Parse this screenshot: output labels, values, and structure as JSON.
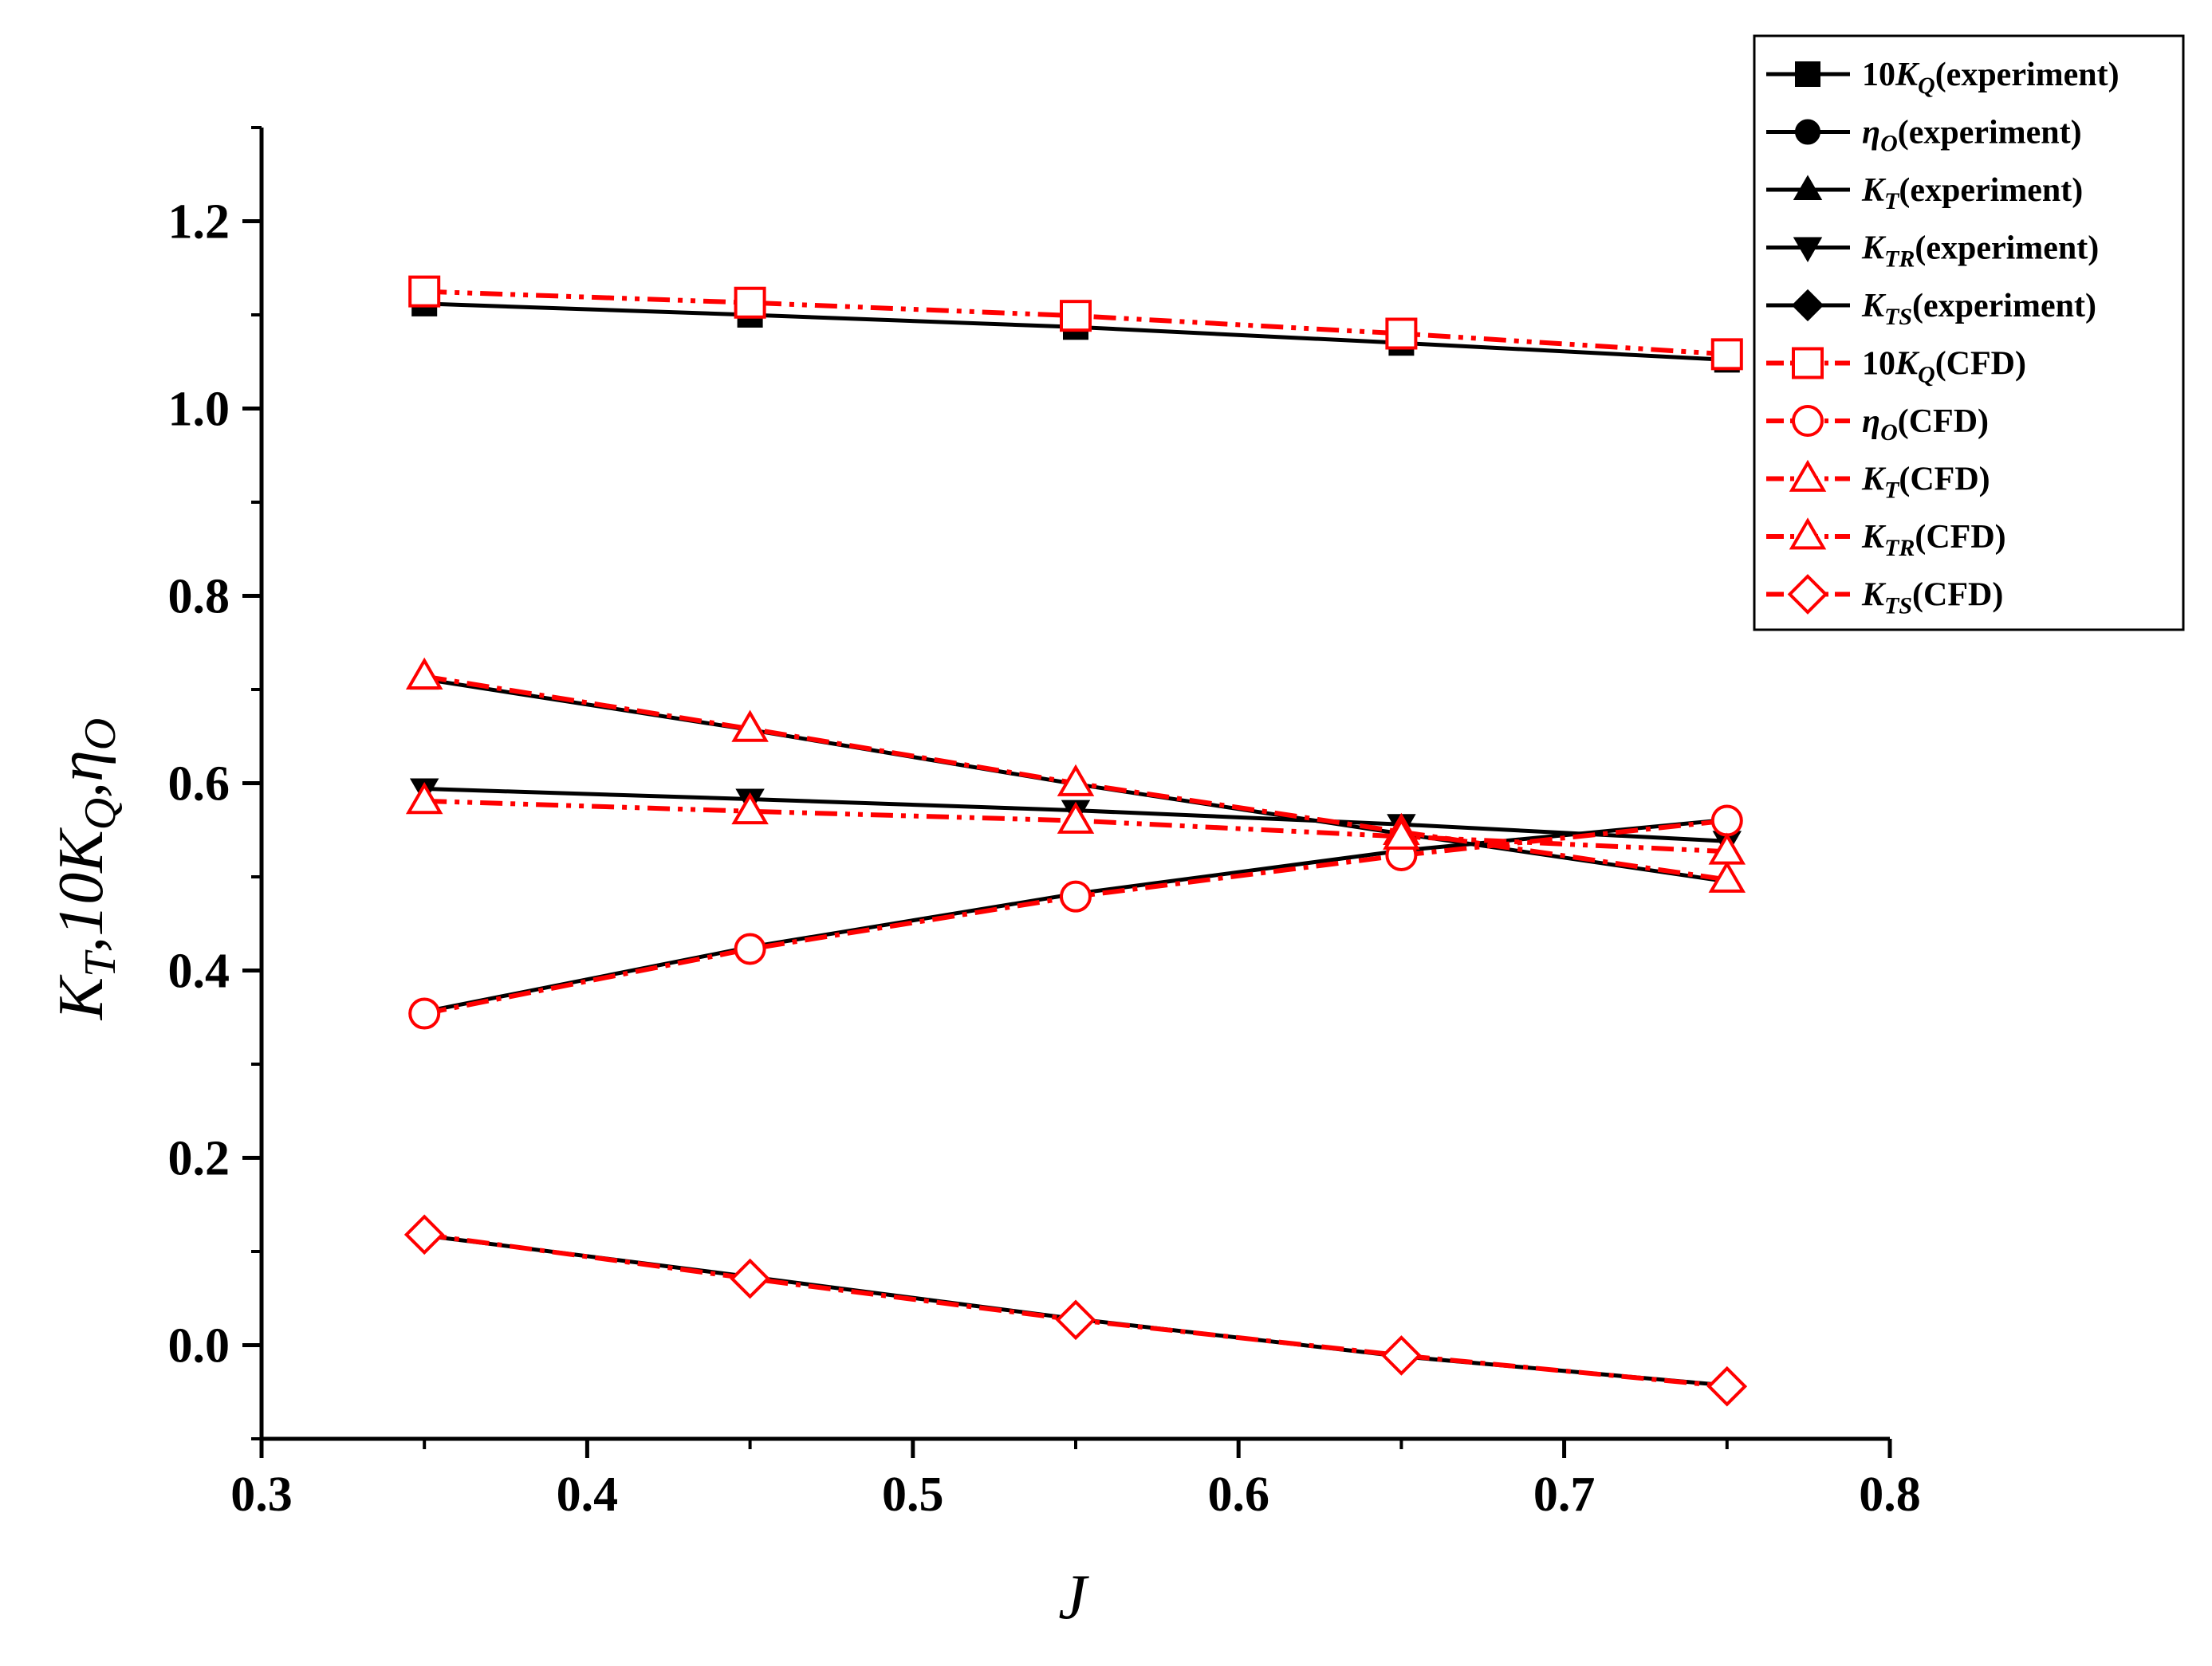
{
  "chart_data": {
    "type": "line",
    "xlabel": "J",
    "ylabel": {
      "parts": [
        {
          "t": "K",
          "sub": "T"
        },
        {
          "t": ",10K",
          "sub": "Q"
        },
        {
          "t": ",η",
          "sub": "O"
        }
      ]
    },
    "xlim": [
      0.3,
      0.8
    ],
    "ylim": [
      -0.1,
      1.3
    ],
    "xticks": [
      "0.3",
      "0.4",
      "0.5",
      "0.6",
      "0.7",
      "0.8"
    ],
    "yticks": [
      "0.0",
      "0.2",
      "0.4",
      "0.6",
      "0.8",
      "1.0",
      "1.2"
    ],
    "x": [
      0.35,
      0.45,
      0.55,
      0.65,
      0.75
    ],
    "grid": false,
    "legend_position": "top-right",
    "series": [
      {
        "key": "kq_exp",
        "legend": {
          "pre": "10",
          "sym": "K",
          "sub": "Q",
          "post": "(experiment)"
        },
        "color": "#000000",
        "marker": "square",
        "filled": true,
        "dash": "solid",
        "values": [
          1.112,
          1.1,
          1.087,
          1.07,
          1.052
        ]
      },
      {
        "key": "eta_exp",
        "legend": {
          "pre": "",
          "sym": "η",
          "sub": "O",
          "post": "(experiment)"
        },
        "color": "#000000",
        "marker": "circle",
        "filled": true,
        "dash": "solid",
        "values": [
          0.356,
          0.425,
          0.482,
          0.528,
          0.561
        ]
      },
      {
        "key": "kt_exp",
        "legend": {
          "pre": "",
          "sym": "K",
          "sub": "T",
          "post": "(experiment)"
        },
        "color": "#000000",
        "marker": "triangle-up",
        "filled": true,
        "dash": "solid",
        "values": [
          0.711,
          0.657,
          0.599,
          0.546,
          0.495
        ]
      },
      {
        "key": "ktr_exp",
        "legend": {
          "pre": "",
          "sym": "K",
          "sub": "TR",
          "post": "(experiment)"
        },
        "color": "#000000",
        "marker": "triangle-down",
        "filled": true,
        "dash": "solid",
        "values": [
          0.594,
          0.583,
          0.571,
          0.556,
          0.538
        ]
      },
      {
        "key": "kts_exp",
        "legend": {
          "pre": "",
          "sym": "K",
          "sub": "TS",
          "post": "(experiment)"
        },
        "color": "#000000",
        "marker": "diamond",
        "filled": true,
        "dash": "solid",
        "values": [
          0.117,
          0.073,
          0.028,
          -0.012,
          -0.043
        ]
      },
      {
        "key": "kq_cfd",
        "legend": {
          "pre": "10",
          "sym": "K",
          "sub": "Q",
          "post": "(CFD)"
        },
        "color": "#ff0000",
        "marker": "square",
        "filled": false,
        "dash": "dashdotdot",
        "values": [
          1.125,
          1.113,
          1.099,
          1.08,
          1.058
        ]
      },
      {
        "key": "eta_cfd",
        "legend": {
          "pre": "",
          "sym": "η",
          "sub": "O",
          "post": "(CFD)"
        },
        "color": "#ff0000",
        "marker": "circle",
        "filled": false,
        "dash": "dashdot",
        "values": [
          0.354,
          0.423,
          0.479,
          0.523,
          0.56
        ]
      },
      {
        "key": "kt_cfd",
        "legend": {
          "pre": "",
          "sym": "K",
          "sub": "T",
          "post": "(CFD)"
        },
        "color": "#ff0000",
        "marker": "triangle-up",
        "filled": false,
        "dash": "dashdot",
        "values": [
          0.714,
          0.658,
          0.6,
          0.548,
          0.497
        ]
      },
      {
        "key": "ktr_cfd",
        "legend": {
          "pre": "",
          "sym": "K",
          "sub": "TR",
          "post": "(CFD)"
        },
        "color": "#ff0000",
        "marker": "triangle-up",
        "filled": false,
        "dash": "dashdotdot",
        "values": [
          0.581,
          0.57,
          0.56,
          0.543,
          0.527
        ]
      },
      {
        "key": "kts_cfd",
        "legend": {
          "pre": "",
          "sym": "K",
          "sub": "TS",
          "post": "(CFD)"
        },
        "color": "#ff0000",
        "marker": "diamond",
        "filled": false,
        "dash": "dashdot",
        "values": [
          0.118,
          0.071,
          0.027,
          -0.011,
          -0.044
        ]
      }
    ]
  }
}
